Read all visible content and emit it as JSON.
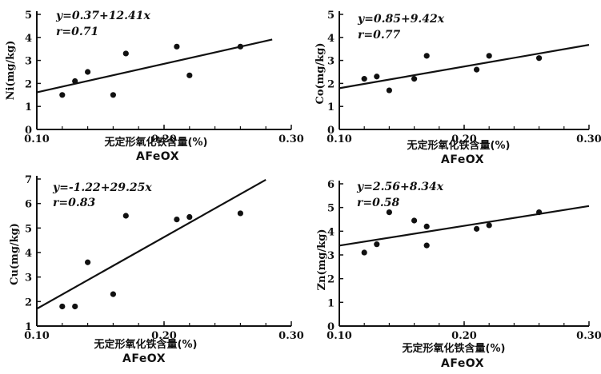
{
  "chart_data": [
    {
      "type": "scatter",
      "title": "",
      "xlabel": "无定形氧化铁含量(%)",
      "xlabel_secondary": "AFeOX",
      "ylabel": "Ni(mg/kg)",
      "xlim": [
        0.1,
        0.3
      ],
      "ylim": [
        0,
        5
      ],
      "x_ticks": [
        "0.10",
        "0.20",
        "0.30"
      ],
      "y_ticks": [
        "0",
        "1",
        "2",
        "3",
        "4",
        "5"
      ],
      "equation": "y=0.37+12.41x",
      "r_label": "r=0.71",
      "fit": {
        "intercept": 0.37,
        "slope": 12.41,
        "x_range": [
          0.1,
          0.285
        ]
      },
      "points": [
        {
          "x": 0.12,
          "y": 1.5
        },
        {
          "x": 0.13,
          "y": 2.1
        },
        {
          "x": 0.14,
          "y": 2.5
        },
        {
          "x": 0.16,
          "y": 1.5
        },
        {
          "x": 0.17,
          "y": 3.3
        },
        {
          "x": 0.21,
          "y": 3.6
        },
        {
          "x": 0.22,
          "y": 2.35
        },
        {
          "x": 0.26,
          "y": 3.6
        }
      ]
    },
    {
      "type": "scatter",
      "title": "",
      "xlabel": "无定形氧化铁含量(%)",
      "xlabel_secondary": "AFeOX",
      "ylabel": "Co(mg/kg)",
      "xlim": [
        0.1,
        0.3
      ],
      "ylim": [
        0,
        5
      ],
      "x_ticks": [
        "0.10",
        "0.20",
        "0.30"
      ],
      "y_ticks": [
        "0",
        "1",
        "2",
        "3",
        "4",
        "5"
      ],
      "equation": "y=0.85+9.42x",
      "r_label": "r=0.77",
      "fit": {
        "intercept": 0.85,
        "slope": 9.42,
        "x_range": [
          0.1,
          0.3
        ]
      },
      "points": [
        {
          "x": 0.12,
          "y": 2.2
        },
        {
          "x": 0.13,
          "y": 2.3
        },
        {
          "x": 0.14,
          "y": 1.7
        },
        {
          "x": 0.16,
          "y": 2.2
        },
        {
          "x": 0.17,
          "y": 3.2
        },
        {
          "x": 0.21,
          "y": 2.6
        },
        {
          "x": 0.22,
          "y": 3.2
        },
        {
          "x": 0.26,
          "y": 3.1
        }
      ]
    },
    {
      "type": "scatter",
      "title": "",
      "xlabel": "无定形氧化铁含量(%)",
      "xlabel_secondary": "AFeOX",
      "ylabel": "Cu(mg/kg)",
      "xlim": [
        0.1,
        0.3
      ],
      "ylim": [
        1,
        7
      ],
      "x_ticks": [
        "0.10",
        "0.20",
        "0.30"
      ],
      "y_ticks": [
        "1",
        "2",
        "3",
        "4",
        "5",
        "6",
        "7"
      ],
      "equation": "y=-1.22+29.25x",
      "r_label": "r=0.83",
      "fit": {
        "intercept": -1.22,
        "slope": 29.25,
        "x_range": [
          0.1,
          0.28
        ]
      },
      "points": [
        {
          "x": 0.12,
          "y": 1.8
        },
        {
          "x": 0.13,
          "y": 1.8
        },
        {
          "x": 0.14,
          "y": 3.6
        },
        {
          "x": 0.16,
          "y": 2.3
        },
        {
          "x": 0.17,
          "y": 5.5
        },
        {
          "x": 0.21,
          "y": 5.35
        },
        {
          "x": 0.22,
          "y": 5.45
        },
        {
          "x": 0.26,
          "y": 5.6
        }
      ]
    },
    {
      "type": "scatter",
      "title": "",
      "xlabel": "无定形氧化铁含量(%)",
      "xlabel_secondary": "AFeOX",
      "ylabel": "Zn(mg/kg)",
      "xlim": [
        0.1,
        0.3
      ],
      "ylim": [
        0,
        6
      ],
      "x_ticks": [
        "0.10",
        "0.20",
        "0.30"
      ],
      "y_ticks": [
        "0",
        "1",
        "2",
        "3",
        "4",
        "5",
        "6"
      ],
      "equation": "y=2.56+8.34x",
      "r_label": "r=0.58",
      "fit": {
        "intercept": 2.56,
        "slope": 8.34,
        "x_range": [
          0.1,
          0.3
        ]
      },
      "points": [
        {
          "x": 0.12,
          "y": 3.1
        },
        {
          "x": 0.13,
          "y": 3.45
        },
        {
          "x": 0.14,
          "y": 4.8
        },
        {
          "x": 0.16,
          "y": 4.45
        },
        {
          "x": 0.17,
          "y": 3.4
        },
        {
          "x": 0.17,
          "y": 4.2
        },
        {
          "x": 0.21,
          "y": 4.1
        },
        {
          "x": 0.22,
          "y": 4.25
        },
        {
          "x": 0.26,
          "y": 4.8
        }
      ]
    }
  ]
}
